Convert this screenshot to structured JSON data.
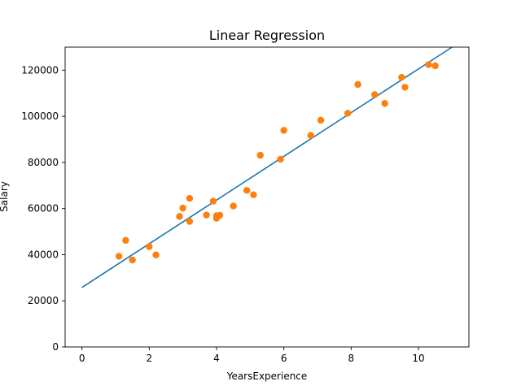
{
  "chart_data": {
    "type": "scatter",
    "title": "Linear Regression",
    "xlabel": "YearsExperience",
    "ylabel": "Salary",
    "xlim": [
      -0.5,
      11.5
    ],
    "ylim": [
      0,
      130000
    ],
    "xticks": [
      0,
      2,
      4,
      6,
      8,
      10
    ],
    "yticks": [
      0,
      20000,
      40000,
      60000,
      80000,
      100000,
      120000
    ],
    "grid": false,
    "legend": "none",
    "colors": {
      "points": "#ff7f0e",
      "line": "#1f77b4"
    },
    "series": [
      {
        "kind": "scatter",
        "x": [
          1.1,
          1.3,
          1.5,
          2.0,
          2.2,
          2.9,
          3.0,
          3.2,
          3.2,
          3.7,
          3.9,
          4.0,
          4.0,
          4.1,
          4.5,
          4.9,
          5.1,
          5.3,
          5.9,
          6.0,
          6.8,
          7.1,
          7.9,
          8.2,
          8.7,
          9.0,
          9.5,
          9.6,
          10.3,
          10.5
        ],
        "y": [
          39300,
          46200,
          37700,
          43500,
          39900,
          56600,
          60200,
          54400,
          64400,
          57200,
          63200,
          55800,
          56900,
          57100,
          61100,
          67900,
          66000,
          83100,
          81400,
          93900,
          91700,
          98300,
          101300,
          113800,
          109400,
          105600,
          116900,
          112600,
          122400,
          121900
        ]
      },
      {
        "kind": "line",
        "x": [
          0,
          11.0
        ],
        "y": [
          25800,
          130000
        ]
      }
    ]
  }
}
